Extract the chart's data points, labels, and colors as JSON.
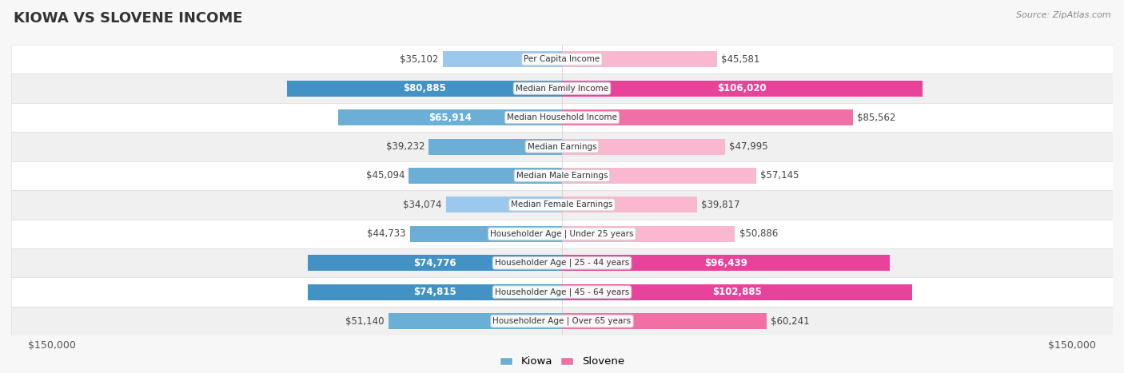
{
  "title": "KIOWA VS SLOVENE INCOME",
  "source": "Source: ZipAtlas.com",
  "categories": [
    "Per Capita Income",
    "Median Family Income",
    "Median Household Income",
    "Median Earnings",
    "Median Male Earnings",
    "Median Female Earnings",
    "Householder Age | Under 25 years",
    "Householder Age | 25 - 44 years",
    "Householder Age | 45 - 64 years",
    "Householder Age | Over 65 years"
  ],
  "kiowa_values": [
    35102,
    80885,
    65914,
    39232,
    45094,
    34074,
    44733,
    74776,
    74815,
    51140
  ],
  "slovene_values": [
    45581,
    106020,
    85562,
    47995,
    57145,
    39817,
    50886,
    96439,
    102885,
    60241
  ],
  "kiowa_labels": [
    "$35,102",
    "$80,885",
    "$65,914",
    "$39,232",
    "$45,094",
    "$34,074",
    "$44,733",
    "$74,776",
    "$74,815",
    "$51,140"
  ],
  "slovene_labels": [
    "$45,581",
    "$106,020",
    "$85,562",
    "$47,995",
    "$57,145",
    "$39,817",
    "$50,886",
    "$96,439",
    "$102,885",
    "$60,241"
  ],
  "kiowa_label_inside": [
    false,
    true,
    true,
    false,
    false,
    false,
    false,
    true,
    true,
    false
  ],
  "slovene_label_inside": [
    false,
    true,
    false,
    false,
    false,
    false,
    false,
    true,
    true,
    false
  ],
  "max_value": 150000,
  "kiowa_color_light": "#9DC8EE",
  "kiowa_color": "#6BAED6",
  "kiowa_color_dark": "#4292C6",
  "slovene_color_light": "#F9B8CF",
  "slovene_color": "#F06FA4",
  "slovene_color_dark": "#E8439A",
  "background_color": "#f7f7f7",
  "row_colors": [
    "#ffffff",
    "#f0f0f0"
  ],
  "label_fontsize": 8.5,
  "title_fontsize": 13,
  "bar_height": 0.55,
  "axis_tick_fontsize": 9
}
